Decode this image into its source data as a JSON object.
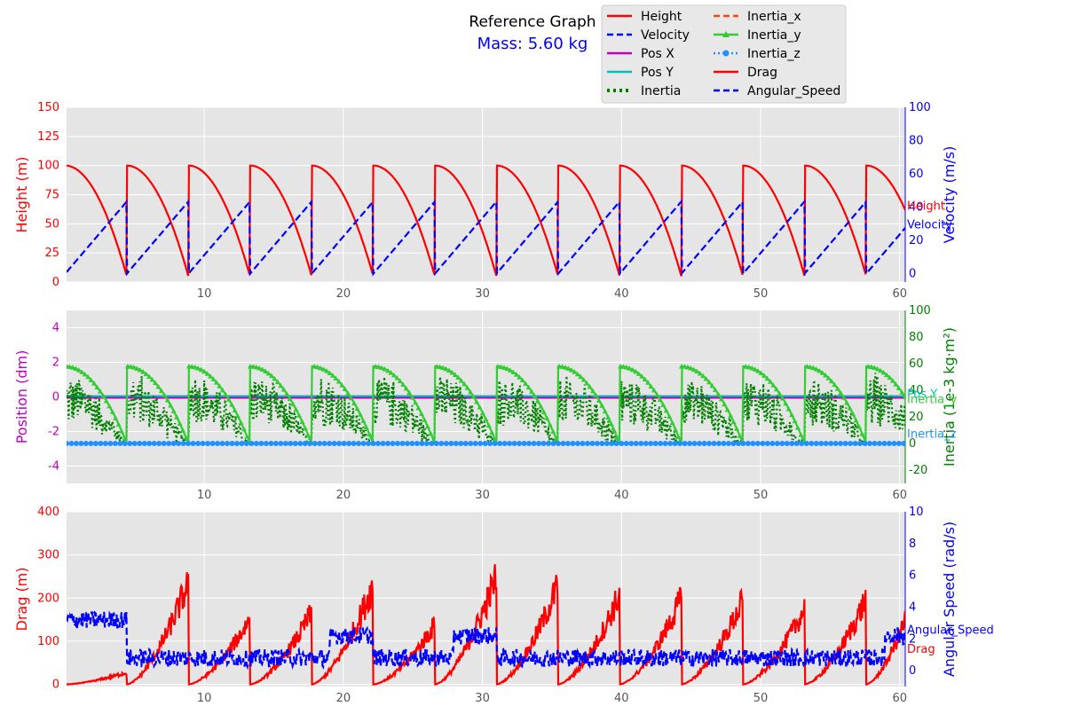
{
  "title": "Reference Graph",
  "subtitle": "Mass: 5.60 kg",
  "colors": {
    "height": "#ff0000",
    "velocity": "#0000ff",
    "pos_x": "#bf00bf",
    "pos_y": "#00bfbf",
    "inertia": "#008000",
    "inertia_x": "#ff4500",
    "inertia_y": "#32cd32",
    "inertia_z": "#1e90ff",
    "drag": "#ff0000",
    "angular_speed": "#0000ff",
    "panel_bg": "#e5e5e5",
    "grid": "#ffffff"
  },
  "legend": [
    {
      "label": "Height",
      "key": "height",
      "style": "solid"
    },
    {
      "label": "Velocity",
      "key": "velocity",
      "style": "dash"
    },
    {
      "label": "Pos X",
      "key": "pos_x",
      "style": "solid"
    },
    {
      "label": "Pos Y",
      "key": "pos_y",
      "style": "solid"
    },
    {
      "label": "Inertia",
      "key": "inertia",
      "style": "dot"
    },
    {
      "label": "Inertia_x",
      "key": "inertia_x",
      "style": "dash"
    },
    {
      "label": "Inertia_y",
      "key": "inertia_y",
      "style": "triangle"
    },
    {
      "label": "Inertia_z",
      "key": "inertia_z",
      "style": "dotmarker"
    },
    {
      "label": "Drag",
      "key": "drag",
      "style": "solid"
    },
    {
      "label": "Angular_Speed",
      "key": "angular_speed",
      "style": "dash"
    }
  ],
  "chart_data": [
    {
      "type": "line",
      "xlim": [
        0.1,
        60.4
      ],
      "x_ticks": [
        10,
        20,
        30,
        40,
        50,
        60
      ],
      "grid": true,
      "left_axis": {
        "label": "Height (m)",
        "ylim": [
          0,
          150
        ],
        "ticks": [
          0,
          25,
          50,
          75,
          100,
          125,
          150
        ]
      },
      "right_axis": {
        "label": "Velocity (m/s)",
        "ylim": [
          -5,
          100
        ],
        "ticks": [
          0,
          20,
          40,
          60,
          80,
          100
        ]
      },
      "period": 4.43,
      "series": [
        {
          "name": "Height",
          "axis": "left",
          "key": "height",
          "style": "solid",
          "model": "falling_height",
          "max": 100,
          "min": 5
        },
        {
          "name": "Velocity",
          "axis": "right",
          "key": "velocity",
          "style": "dash",
          "model": "sawtooth",
          "max": 43.4,
          "start": 5.5
        }
      ],
      "end_labels": [
        "Height",
        "Velocity"
      ]
    },
    {
      "type": "line",
      "xlim": [
        0.1,
        60.4
      ],
      "x_ticks": [
        10,
        20,
        30,
        40,
        50,
        60
      ],
      "grid": true,
      "left_axis": {
        "label": "Position (dm)",
        "ylim": [
          -5,
          5
        ],
        "ticks": [
          -4,
          -2,
          0,
          2,
          4
        ]
      },
      "right_axis": {
        "label": "Inertia (1e-3 kg·m²)",
        "ylim": [
          -30,
          100
        ],
        "ticks": [
          -20,
          0,
          20,
          40,
          60,
          80,
          100
        ]
      },
      "period": 4.43,
      "series": [
        {
          "name": "Pos X",
          "axis": "left",
          "key": "pos_x",
          "style": "solid",
          "value": -0.05
        },
        {
          "name": "Pos Y",
          "axis": "left",
          "key": "pos_y",
          "style": "solid",
          "value": 0.05
        },
        {
          "name": "Inertia",
          "axis": "right",
          "key": "inertia",
          "style": "dot",
          "model": "noisy_decay",
          "max": 55,
          "min": 0
        },
        {
          "name": "Inertia_y",
          "axis": "right",
          "key": "inertia_y",
          "style": "triangle",
          "model": "falling_height",
          "max": 58,
          "min": 0
        },
        {
          "name": "Inertia_z",
          "axis": "right",
          "key": "inertia_z",
          "style": "dotmarker",
          "value": 0
        }
      ],
      "end_labels": [
        "Pos Y",
        "Inertia_y",
        "Inertia_z"
      ]
    },
    {
      "type": "line",
      "xlim": [
        0.1,
        60.4
      ],
      "x_ticks": [
        10,
        20,
        30,
        40,
        50,
        60
      ],
      "grid": true,
      "left_axis": {
        "label": "Drag (m)",
        "ylim": [
          -5,
          400
        ],
        "ticks": [
          0,
          100,
          200,
          300,
          400
        ]
      },
      "right_axis": {
        "label": "Angular Speed (rad/s)",
        "ylim": [
          -1,
          10
        ],
        "ticks": [
          0,
          2,
          4,
          6,
          8,
          10
        ]
      },
      "period": 4.43,
      "drag_peaks": [
        30,
        255,
        165,
        180,
        250,
        150,
        270,
        250,
        225,
        215,
        210,
        190,
        215,
        335,
        90
      ],
      "angular_level_first": 3.2,
      "angular_level_rest": 0.8,
      "series": [
        {
          "name": "Drag",
          "axis": "left",
          "key": "drag",
          "style": "solid",
          "model": "rising_noise"
        },
        {
          "name": "Angular_Speed",
          "axis": "right",
          "key": "angular_speed",
          "style": "dash",
          "model": "noise_level"
        }
      ],
      "end_labels": [
        "Angular_Speed",
        "Drag"
      ]
    }
  ]
}
